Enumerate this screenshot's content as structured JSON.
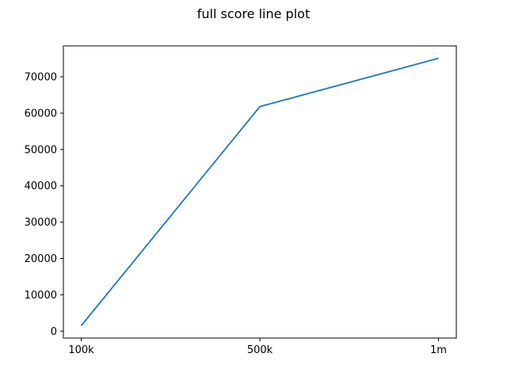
{
  "chart_data": {
    "type": "line",
    "title": "full score line plot",
    "xlabel": "",
    "ylabel": "",
    "categories": [
      "100k",
      "500k",
      "1m"
    ],
    "series": [
      {
        "values": [
          1500,
          61800,
          75100
        ],
        "color": "#1f77b4"
      }
    ],
    "ylim": [
      -1900,
      78500
    ],
    "yticks": [
      0,
      10000,
      20000,
      30000,
      40000,
      50000,
      60000,
      70000
    ],
    "ytick_labels": [
      "0",
      "10000",
      "20000",
      "30000",
      "40000",
      "50000",
      "60000",
      "70000"
    ],
    "grid": false,
    "legend": "none"
  }
}
